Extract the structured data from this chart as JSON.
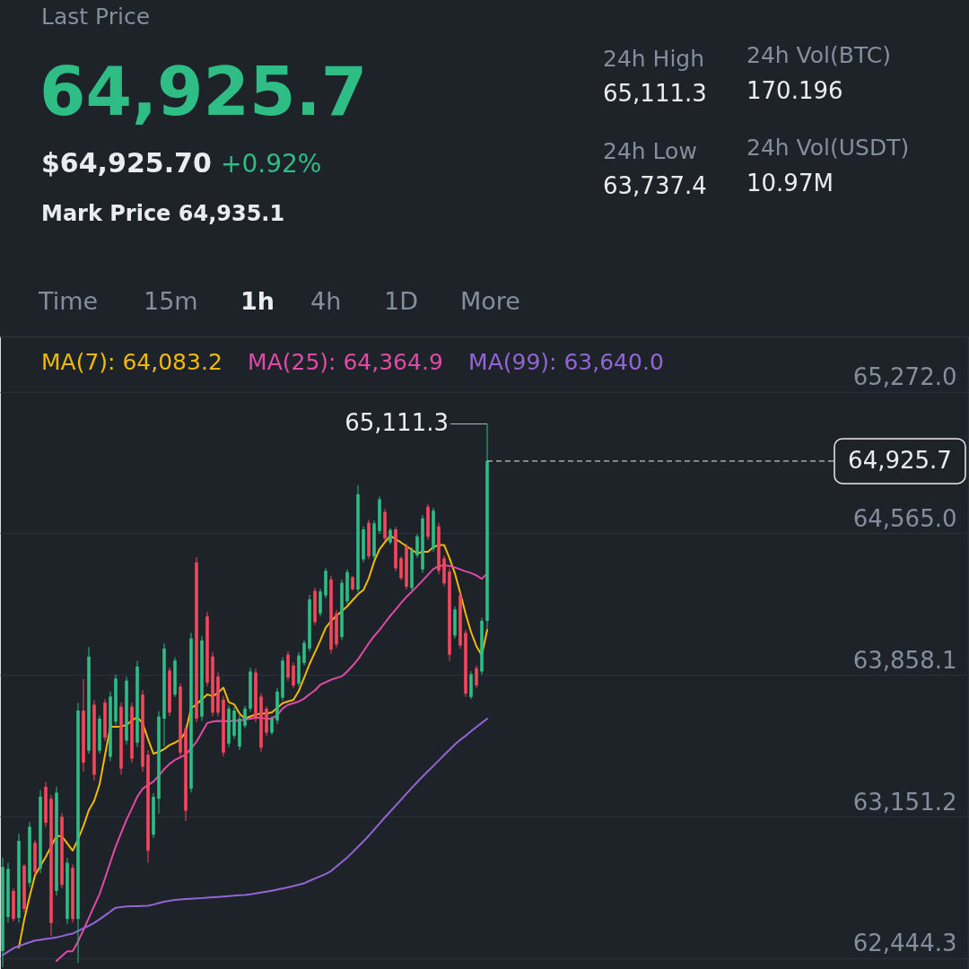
{
  "chart_data": {
    "type": "candlestick",
    "categories": [
      null,
      null,
      null,
      null,
      null,
      null,
      null,
      null,
      null,
      null,
      null,
      null,
      null,
      null,
      null,
      null,
      null,
      null,
      null,
      null,
      null,
      null,
      null,
      null,
      null,
      null,
      null,
      null,
      null,
      null,
      null,
      null,
      null,
      null,
      null,
      null,
      null,
      null,
      null,
      null,
      null,
      null,
      null,
      null,
      null,
      null,
      null,
      null,
      null,
      null,
      null,
      null,
      null,
      null,
      null,
      null,
      null,
      null,
      null,
      null,
      null,
      null,
      null,
      null,
      null,
      null,
      null,
      null,
      null,
      null,
      null,
      null,
      null,
      null,
      null,
      null,
      null,
      null,
      null,
      null,
      null,
      null,
      null,
      null,
      null,
      null,
      null,
      null,
      null,
      null,
      null,
      null,
      null,
      null,
      null,
      null,
      null,
      null,
      null,
      null,
      null,
      null,
      null,
      null,
      null,
      null,
      null,
      null,
      null,
      null,
      null,
      null,
      null,
      null,
      null,
      null,
      null,
      null,
      null,
      null,
      null,
      null,
      null,
      null,
      null,
      null,
      null,
      null,
      null,
      null,
      null,
      null,
      null,
      null,
      null,
      null,
      null,
      null,
      null,
      null,
      null,
      null,
      null,
      null,
      null,
      null,
      null,
      null,
      null,
      null,
      null,
      null,
      null,
      null,
      null,
      null,
      null,
      null,
      null,
      null,
      null,
      null,
      null,
      null,
      null,
      null,
      null,
      null,
      null,
      null,
      null,
      null,
      null,
      null,
      null,
      null,
      null,
      null,
      null,
      null
    ],
    "ohlc": [
      [
        62480,
        62945,
        62400,
        62900
      ],
      [
        62650,
        62920,
        62621,
        62890
      ],
      [
        62780,
        62793,
        62628,
        62640
      ],
      [
        62645,
        63065,
        62621,
        63030
      ],
      [
        62905,
        62914,
        62673,
        62690
      ],
      [
        62820,
        63124,
        62800,
        63100
      ],
      [
        63020,
        63035,
        62860,
        62875
      ],
      [
        62890,
        63283,
        62868,
        63250
      ],
      [
        63300,
        63323,
        63099,
        63120
      ],
      [
        63240,
        63259,
        62554,
        62620
      ],
      [
        62780,
        63300,
        62756,
        63270
      ],
      [
        63150,
        63169,
        62793,
        62810
      ],
      [
        62640,
        62945,
        62614,
        62920
      ],
      [
        62895,
        62912,
        62621,
        62640
      ],
      [
        62640,
        63719,
        62420,
        63680
      ],
      [
        63680,
        63838,
        63375,
        63420
      ],
      [
        63480,
        63998,
        63465,
        63950
      ],
      [
        63710,
        63731,
        63330,
        63360
      ],
      [
        63480,
        63656,
        63465,
        63640
      ],
      [
        63720,
        63737,
        63528,
        63545
      ],
      [
        63450,
        63775,
        63428,
        63750
      ],
      [
        63625,
        63860,
        63607,
        63840
      ],
      [
        63700,
        63722,
        63360,
        63390
      ],
      [
        63530,
        63850,
        63510,
        63830
      ],
      [
        63700,
        63719,
        63420,
        63440
      ],
      [
        63520,
        63928,
        63498,
        63900
      ],
      [
        63760,
        63782,
        63375,
        63400
      ],
      [
        63460,
        63483,
        62920,
        62980
      ],
      [
        63060,
        63268,
        63044,
        63250
      ],
      [
        63240,
        63677,
        63166,
        63650
      ],
      [
        63640,
        64015,
        63502,
        63990
      ],
      [
        63880,
        63895,
        63652,
        63670
      ],
      [
        63760,
        63946,
        63748,
        63930
      ],
      [
        63800,
        63816,
        63442,
        63470
      ],
      [
        63590,
        63607,
        63129,
        63180
      ],
      [
        63290,
        64068,
        63271,
        64040
      ],
      [
        64420,
        64446,
        63622,
        63640
      ],
      [
        63650,
        64052,
        63629,
        64030
      ],
      [
        64150,
        64174,
        63801,
        63820
      ],
      [
        63950,
        63972,
        63652,
        63670
      ],
      [
        63850,
        63871,
        63652,
        63670
      ],
      [
        63735,
        63753,
        63450,
        63470
      ],
      [
        63515,
        63707,
        63498,
        63690
      ],
      [
        63555,
        63696,
        63540,
        63680
      ],
      [
        63500,
        63659,
        63483,
        63640
      ],
      [
        63605,
        63704,
        63592,
        63690
      ],
      [
        63690,
        63894,
        63674,
        63875
      ],
      [
        63870,
        63890,
        63622,
        63640
      ],
      [
        63750,
        63768,
        63475,
        63495
      ],
      [
        63690,
        63702,
        63554,
        63570
      ],
      [
        63570,
        63653,
        63559,
        63640
      ],
      [
        63630,
        63793,
        63613,
        63775
      ],
      [
        63745,
        63947,
        63729,
        63930
      ],
      [
        63960,
        63977,
        63828,
        63845
      ],
      [
        63905,
        63920,
        63793,
        63805
      ],
      [
        63815,
        63971,
        63801,
        63955
      ],
      [
        63918,
        64032,
        63905,
        64018
      ],
      [
        63990,
        64258,
        63975,
        64235
      ],
      [
        64278,
        64294,
        64107,
        64122
      ],
      [
        64165,
        64289,
        64152,
        64275
      ],
      [
        64255,
        64391,
        64241,
        64378
      ],
      [
        64335,
        64353,
        63965,
        63985
      ],
      [
        64165,
        64182,
        63995,
        64010
      ],
      [
        64048,
        64334,
        64032,
        64318
      ],
      [
        64226,
        64386,
        64212,
        64372
      ],
      [
        64346,
        64353,
        64279,
        64286
      ],
      [
        64285,
        64806,
        64271,
        64760
      ],
      [
        64435,
        64600,
        64420,
        64585
      ],
      [
        64618,
        64633,
        64436,
        64450
      ],
      [
        64450,
        64630,
        64436,
        64615
      ],
      [
        64577,
        64749,
        64562,
        64735
      ],
      [
        64672,
        64687,
        64525,
        64540
      ],
      [
        64520,
        64592,
        64510,
        64582
      ],
      [
        64585,
        64598,
        64376,
        64390
      ],
      [
        64440,
        64450,
        64331,
        64342
      ],
      [
        64500,
        64513,
        64285,
        64298
      ],
      [
        64292,
        64495,
        64279,
        64480
      ],
      [
        64455,
        64562,
        64443,
        64550
      ],
      [
        64385,
        64657,
        64368,
        64640
      ],
      [
        64698,
        64712,
        64532,
        64548
      ],
      [
        64488,
        64692,
        64473,
        64678
      ],
      [
        64600,
        64618,
        64361,
        64378
      ],
      [
        64440,
        64454,
        64301,
        64315
      ],
      [
        64375,
        64391,
        63928,
        63960
      ],
      [
        64055,
        64200,
        64040,
        64185
      ],
      [
        64255,
        64271,
        63988,
        64005
      ],
      [
        64068,
        64084,
        63748,
        63765
      ],
      [
        63748,
        63876,
        63737.4,
        63862
      ],
      [
        63892,
        63905,
        63793,
        63806
      ],
      [
        63875,
        64144,
        63860,
        64128
      ],
      [
        64128,
        65111.3,
        64084,
        64925.7
      ],
      null,
      null,
      null,
      null,
      null,
      null,
      null,
      null,
      null,
      null,
      null,
      null,
      null,
      null,
      null,
      null,
      null,
      null,
      null,
      null,
      null,
      null,
      null,
      null,
      null,
      null,
      null,
      null,
      null,
      null,
      null,
      null,
      null,
      null,
      null,
      null,
      null,
      null,
      null,
      null,
      null,
      null,
      null,
      null,
      null,
      null,
      null,
      null,
      null,
      null,
      null,
      null,
      null,
      null,
      null,
      null,
      null,
      null,
      null,
      null,
      null,
      null,
      null,
      null,
      null,
      null,
      null,
      null,
      null,
      null,
      null,
      null,
      null,
      null,
      null,
      null,
      null,
      null,
      null,
      null,
      null,
      null,
      null,
      null,
      null,
      null,
      null,
      null,
      null
    ],
    "colors": [
      "#2ebd85",
      "#2ebd85",
      "#f6465d",
      "#2ebd85",
      "#f6465d",
      "#2ebd85",
      "#f6465d",
      "#2ebd85",
      "#f6465d",
      "#f6465d",
      "#2ebd85",
      "#f6465d",
      "#2ebd85",
      "#f6465d",
      "#2ebd85",
      "#f6465d",
      "#2ebd85",
      "#f6465d",
      "#2ebd85",
      "#f6465d",
      "#2ebd85",
      "#2ebd85",
      "#f6465d",
      "#2ebd85",
      "#f6465d",
      "#2ebd85",
      "#f6465d",
      "#f6465d",
      "#2ebd85",
      "#2ebd85",
      "#2ebd85",
      "#f6465d",
      "#2ebd85",
      "#f6465d",
      "#f6465d",
      "#2ebd85",
      "#f6465d",
      "#2ebd85",
      "#f6465d",
      "#f6465d",
      "#f6465d",
      "#f6465d",
      "#2ebd85",
      "#2ebd85",
      "#2ebd85",
      "#2ebd85",
      "#2ebd85",
      "#f6465d",
      "#f6465d",
      "#f6465d",
      "#2ebd85",
      "#2ebd85",
      "#2ebd85",
      "#f6465d",
      "#f6465d",
      "#2ebd85",
      "#2ebd85",
      "#2ebd85",
      "#f6465d",
      "#2ebd85",
      "#2ebd85",
      "#f6465d",
      "#f6465d",
      "#2ebd85",
      "#2ebd85",
      "#f6465d",
      "#2ebd85",
      "#2ebd85",
      "#f6465d",
      "#2ebd85",
      "#2ebd85",
      "#f6465d",
      "#2ebd85",
      "#f6465d",
      "#f6465d",
      "#f6465d",
      "#2ebd85",
      "#2ebd85",
      "#2ebd85",
      "#f6465d",
      "#2ebd85",
      "#f6465d",
      "#f6465d",
      "#f6465d",
      "#2ebd85",
      "#f6465d",
      "#f6465d",
      "#2ebd85",
      "#f6465d",
      "#2ebd85",
      "#2ebd85",
      null,
      null,
      null,
      null,
      null,
      null,
      null,
      null,
      null,
      null,
      null,
      null,
      null,
      null,
      null,
      null,
      null,
      null,
      null,
      null,
      null,
      null,
      null,
      null,
      null,
      null,
      null,
      null,
      null,
      null,
      null,
      null,
      null,
      null,
      null,
      null,
      null,
      null,
      null,
      null,
      null,
      null,
      null,
      null,
      null,
      null,
      null,
      null,
      null,
      null,
      null,
      null,
      null,
      null,
      null,
      null,
      null,
      null,
      null,
      null,
      null,
      null,
      null,
      null,
      null,
      null,
      null,
      null,
      null,
      null,
      null,
      null,
      null,
      null,
      null,
      null,
      null,
      null,
      null,
      null,
      null,
      null,
      null,
      null,
      null,
      null,
      null,
      null,
      null
    ],
    "series": [
      {
        "name": "MA(7): 64,083.2",
        "type": "line",
        "color": "#f0b90b",
        "values": [
          null,
          null,
          null,
          62497,
          62636,
          62752,
          62858,
          62904,
          62950,
          63002,
          63054,
          63053,
          63017,
          62981,
          63038,
          63104,
          63183,
          63230,
          63312,
          63457,
          63599,
          63599,
          63601,
          63608,
          63631,
          63647,
          63617,
          63537,
          63465,
          63474,
          63488,
          63508,
          63520,
          63535,
          63575,
          63692,
          63711,
          63736,
          63761,
          63751,
          63769,
          63795,
          63722,
          63711,
          63665,
          63640,
          63651,
          63660,
          63666,
          63666,
          63671,
          63694,
          63717,
          63726,
          63734,
          63778,
          63844,
          63913,
          63971,
          64030,
          64094,
          64128,
          64154,
          64177,
          64201,
          64231,
          64261,
          64282,
          64340,
          64424,
          64486,
          64521,
          64553,
          64536,
          64519,
          64501,
          64483,
          64465,
          64473,
          64473,
          64496,
          64507,
          64507,
          64441,
          64365,
          64267,
          64163,
          64072,
          64002,
          63956,
          64083.2,
          null,
          null,
          null,
          null,
          null,
          null,
          null,
          null,
          null,
          null,
          null,
          null,
          null,
          null,
          null,
          null,
          null,
          null,
          null,
          null,
          null,
          null,
          null,
          null,
          null,
          null,
          null,
          null,
          null,
          null,
          null,
          null,
          null,
          null,
          null,
          null,
          null,
          null,
          null,
          null,
          null,
          null,
          null,
          null,
          null,
          null,
          null,
          null,
          null,
          null,
          null,
          null,
          null,
          null,
          null,
          null,
          null,
          null,
          null,
          null,
          null,
          null,
          null,
          null,
          null,
          null,
          null,
          null,
          null,
          null,
          null,
          null,
          null,
          null,
          null,
          null,
          null,
          null,
          null,
          null,
          null,
          null,
          null,
          null,
          null,
          null,
          null,
          null,
          null
        ]
      },
      {
        "name": "MA(25): 64,364.9",
        "type": "line",
        "color": "#e24aa8",
        "values": [
          null,
          null,
          null,
          null,
          null,
          null,
          null,
          null,
          null,
          null,
          62430,
          62455,
          62478,
          62479,
          62527,
          62585,
          62645,
          62705,
          62765,
          62842,
          62923,
          63002,
          63069,
          63135,
          63191,
          63250,
          63290,
          63309,
          63326,
          63354,
          63388,
          63414,
          63434,
          63447,
          63461,
          63492,
          63524,
          63571,
          63618,
          63625,
          63629,
          63627,
          63627,
          63629,
          63631,
          63635,
          63640,
          63644,
          63644,
          63640,
          63640,
          63657,
          63691,
          63709,
          63717,
          63725,
          63740,
          63762,
          63781,
          63809,
          63822,
          63834,
          63843,
          63851,
          63875,
          63904,
          63936,
          63976,
          64016,
          64052,
          64083,
          64118,
          64153,
          64185,
          64217,
          64248,
          64274,
          64301,
          64329,
          64358,
          64387,
          64401,
          64406,
          64402,
          64395,
          64385,
          64375,
          64367,
          64355,
          64338,
          64364.9,
          null,
          null,
          null,
          null,
          null,
          null,
          null,
          null,
          null,
          null,
          null,
          null,
          null,
          null,
          null,
          null,
          null,
          null,
          null,
          null,
          null,
          null,
          null,
          null,
          null,
          null,
          null,
          null,
          null,
          null,
          null,
          null,
          null,
          null,
          null,
          null,
          null,
          null,
          null,
          null,
          null,
          null,
          null,
          null,
          null,
          null,
          null,
          null,
          null,
          null,
          null,
          null,
          null,
          null,
          null,
          null,
          null,
          null,
          null,
          null,
          null,
          null,
          null,
          null,
          null,
          null,
          null,
          null,
          null,
          null,
          null,
          null,
          null,
          null,
          null,
          null,
          null,
          null,
          null,
          null,
          null,
          null,
          null,
          null,
          null,
          null,
          null,
          null,
          null
        ]
      },
      {
        "name": "MA(99): 63,640.0",
        "type": "line",
        "color": "#9365d6",
        "values": [
          62459,
          62477,
          62494,
          62504,
          62514,
          62523,
          62532,
          62536,
          62540,
          62543,
          62548,
          62554,
          62561,
          62567,
          62580,
          62593,
          62606,
          62620,
          62638,
          62657,
          62677,
          62696,
          62699,
          62702,
          62704,
          62704,
          62705,
          62706,
          62712,
          62719,
          62726,
          62730,
          62735,
          62737,
          62739,
          62741,
          62743,
          62744,
          62746,
          62748,
          62750,
          62752,
          62754,
          62756,
          62758,
          62760,
          62763,
          62767,
          62772,
          62776,
          62781,
          62786,
          62792,
          62798,
          62804,
          62811,
          62818,
          62830,
          62842,
          62853,
          62864,
          62879,
          62902,
          62924,
          62947,
          62973,
          63000,
          63027,
          63055,
          63086,
          63116,
          63147,
          63176,
          63206,
          63235,
          63265,
          63294,
          63323,
          63351,
          63378,
          63404,
          63431,
          63458,
          63484,
          63511,
          63534,
          63555,
          63577,
          63598,
          63619,
          63640.0,
          null,
          null,
          null,
          null,
          null,
          null,
          null,
          null,
          null,
          null,
          null,
          null,
          null,
          null,
          null,
          null,
          null,
          null,
          null,
          null,
          null,
          null,
          null,
          null,
          null,
          null,
          null,
          null,
          null,
          null,
          null,
          null,
          null,
          null,
          null,
          null,
          null,
          null,
          null,
          null,
          null,
          null,
          null,
          null,
          null,
          null,
          null,
          null,
          null,
          null,
          null,
          null,
          null,
          null,
          null,
          null,
          null,
          null,
          null,
          null,
          null,
          null,
          null,
          null,
          null,
          null,
          null,
          null,
          null,
          null,
          null,
          null,
          null,
          null,
          null,
          null,
          null,
          null,
          null,
          null,
          null,
          null,
          null,
          null,
          null,
          null,
          null,
          null,
          null
        ]
      }
    ],
    "ylim": [
      62390,
      65548
    ],
    "yticks": [
      {
        "value": 65272.0,
        "label": "65,272.0"
      },
      {
        "value": 64565.0,
        "label": "64,565.0"
      },
      {
        "value": 63858.1,
        "label": "63,858.1"
      },
      {
        "value": 63151.2,
        "label": "63,151.2"
      },
      {
        "value": 62444.3,
        "label": "62,444.3"
      }
    ],
    "grid": "y",
    "legend": "top left",
    "tick_labels": "y",
    "ref_lines": [
      {
        "axis": "y",
        "value": 64925.7,
        "label": "64,925.7",
        "line_style": "dashed",
        "color": "#eaecef"
      }
    ],
    "annotations": [
      "Last Price",
      "64,925.7",
      "$64,925.70",
      "+0.92%",
      "Mark Price 64,935.1",
      "24h High",
      "65,111.3",
      "24h Vol(BTC)",
      "170.196",
      "24h Low",
      "63,737.4",
      "24h Vol(USDT)",
      "10.97M",
      "Time",
      "15m",
      "1h",
      "4h",
      "1D",
      "More",
      "65,111.3"
    ]
  }
}
